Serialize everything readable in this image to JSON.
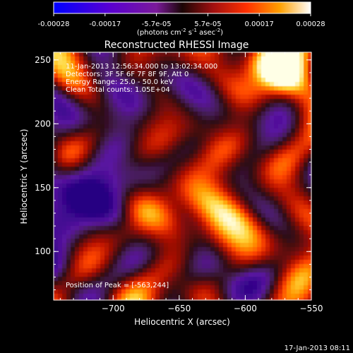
{
  "colorbar": {
    "ticks": [
      "-0.00028",
      "-0.00017",
      "-5.7e-05",
      "5.7e-05",
      "0.00017",
      "0.00028"
    ],
    "units_main": "(photons cm",
    "units_exp1": "-2",
    "units_mid": " s",
    "units_exp2": "-1",
    "units_tail": " asec",
    "units_exp3": "-2",
    "units_close": ")"
  },
  "plot": {
    "title": "Reconstructed RHESSI Image",
    "xlabel": "Heliocentric X (arcsec)",
    "ylabel": "Heliocentric Y (arcsec)",
    "x_ticks": [
      "-700",
      "-650",
      "-600",
      "-550"
    ],
    "y_ticks": [
      "250",
      "200",
      "150",
      "100"
    ],
    "x_range": [
      -745,
      -550
    ],
    "y_range": [
      62,
      256
    ]
  },
  "info": {
    "line1": "11-Jan-2013 12:56:34.000 to 13:02:34.000",
    "line2": "Detectors: 3F 5F 6F 7F 8F 9F, Att 0",
    "line3": "Energy Range: 25.0 - 50.0 keV",
    "line4": "Clean     Total counts: 1.05E+04",
    "peak": "Position of Peak = [-563,244]"
  },
  "footer": {
    "timestamp": "17-Jan-2013 08:11"
  }
}
